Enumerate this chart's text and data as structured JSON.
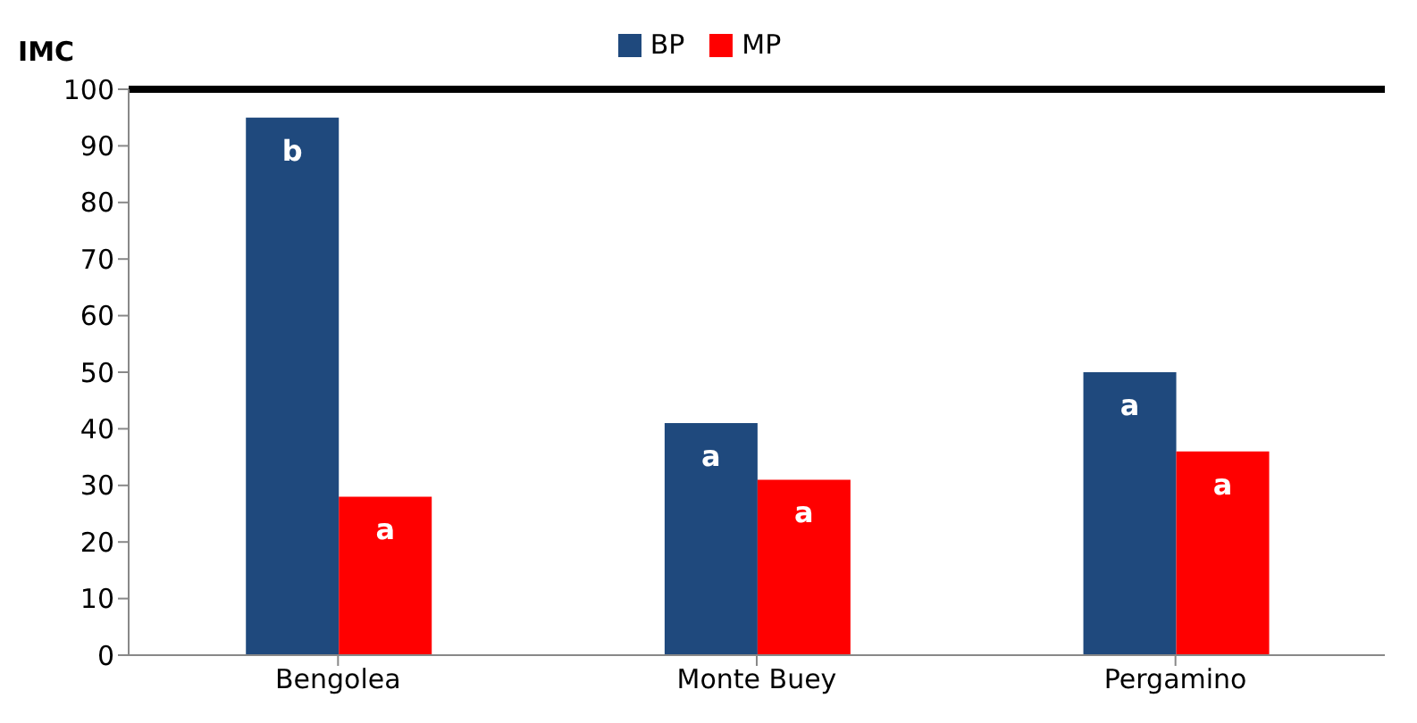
{
  "chart_data": {
    "type": "bar",
    "ylabel": "IMC",
    "categories": [
      "Bengolea",
      "Monte Buey",
      "Pergamino"
    ],
    "series": [
      {
        "name": "BP",
        "color": "#1f497d",
        "values": [
          95,
          41,
          50
        ],
        "value_labels": [
          "b",
          "a",
          "a"
        ]
      },
      {
        "name": "MP",
        "color": "#ff0000",
        "values": [
          28,
          31,
          36
        ],
        "value_labels": [
          "a",
          "a",
          "a"
        ]
      }
    ],
    "ylim": [
      0,
      100
    ],
    "yticks": [
      0,
      10,
      20,
      30,
      40,
      50,
      60,
      70,
      80,
      90,
      100
    ],
    "ref_lines": [
      {
        "axis": "y",
        "value": 100,
        "color": "#000000"
      }
    ],
    "grid": false,
    "legend": "top"
  }
}
